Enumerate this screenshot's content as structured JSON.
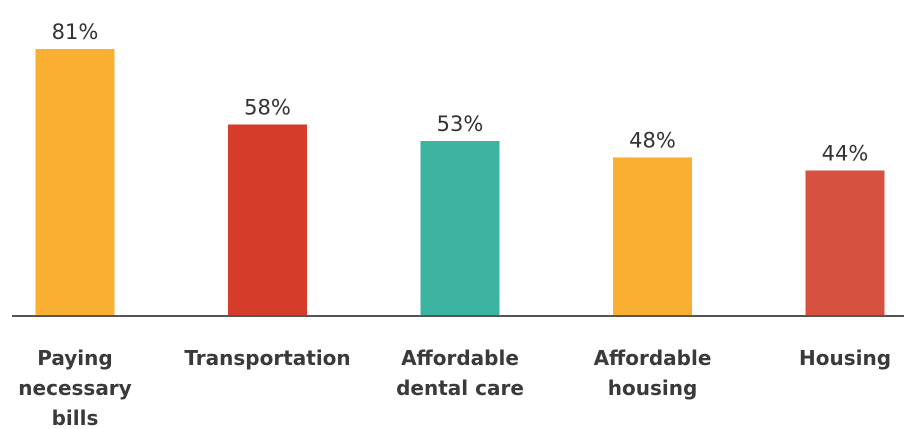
{
  "chart_data": {
    "type": "bar",
    "categories": [
      [
        "Paying",
        "necessary",
        "bills"
      ],
      [
        "Transportation"
      ],
      [
        "Affordable",
        "dental care"
      ],
      [
        "Affordable",
        "housing"
      ],
      [
        "Housing"
      ]
    ],
    "values": [
      81,
      58,
      53,
      48,
      44
    ],
    "value_labels": [
      "81%",
      "58%",
      "53%",
      "48%",
      "44%"
    ],
    "colors": [
      "#F9AF31",
      "#D53D2A",
      "#3DB3A1",
      "#F9AF31",
      "#D65140"
    ],
    "title": "",
    "xlabel": "",
    "ylabel": "",
    "ylim": [
      0,
      81
    ],
    "grid": false,
    "legend": "none",
    "axis_color": "#555555"
  }
}
